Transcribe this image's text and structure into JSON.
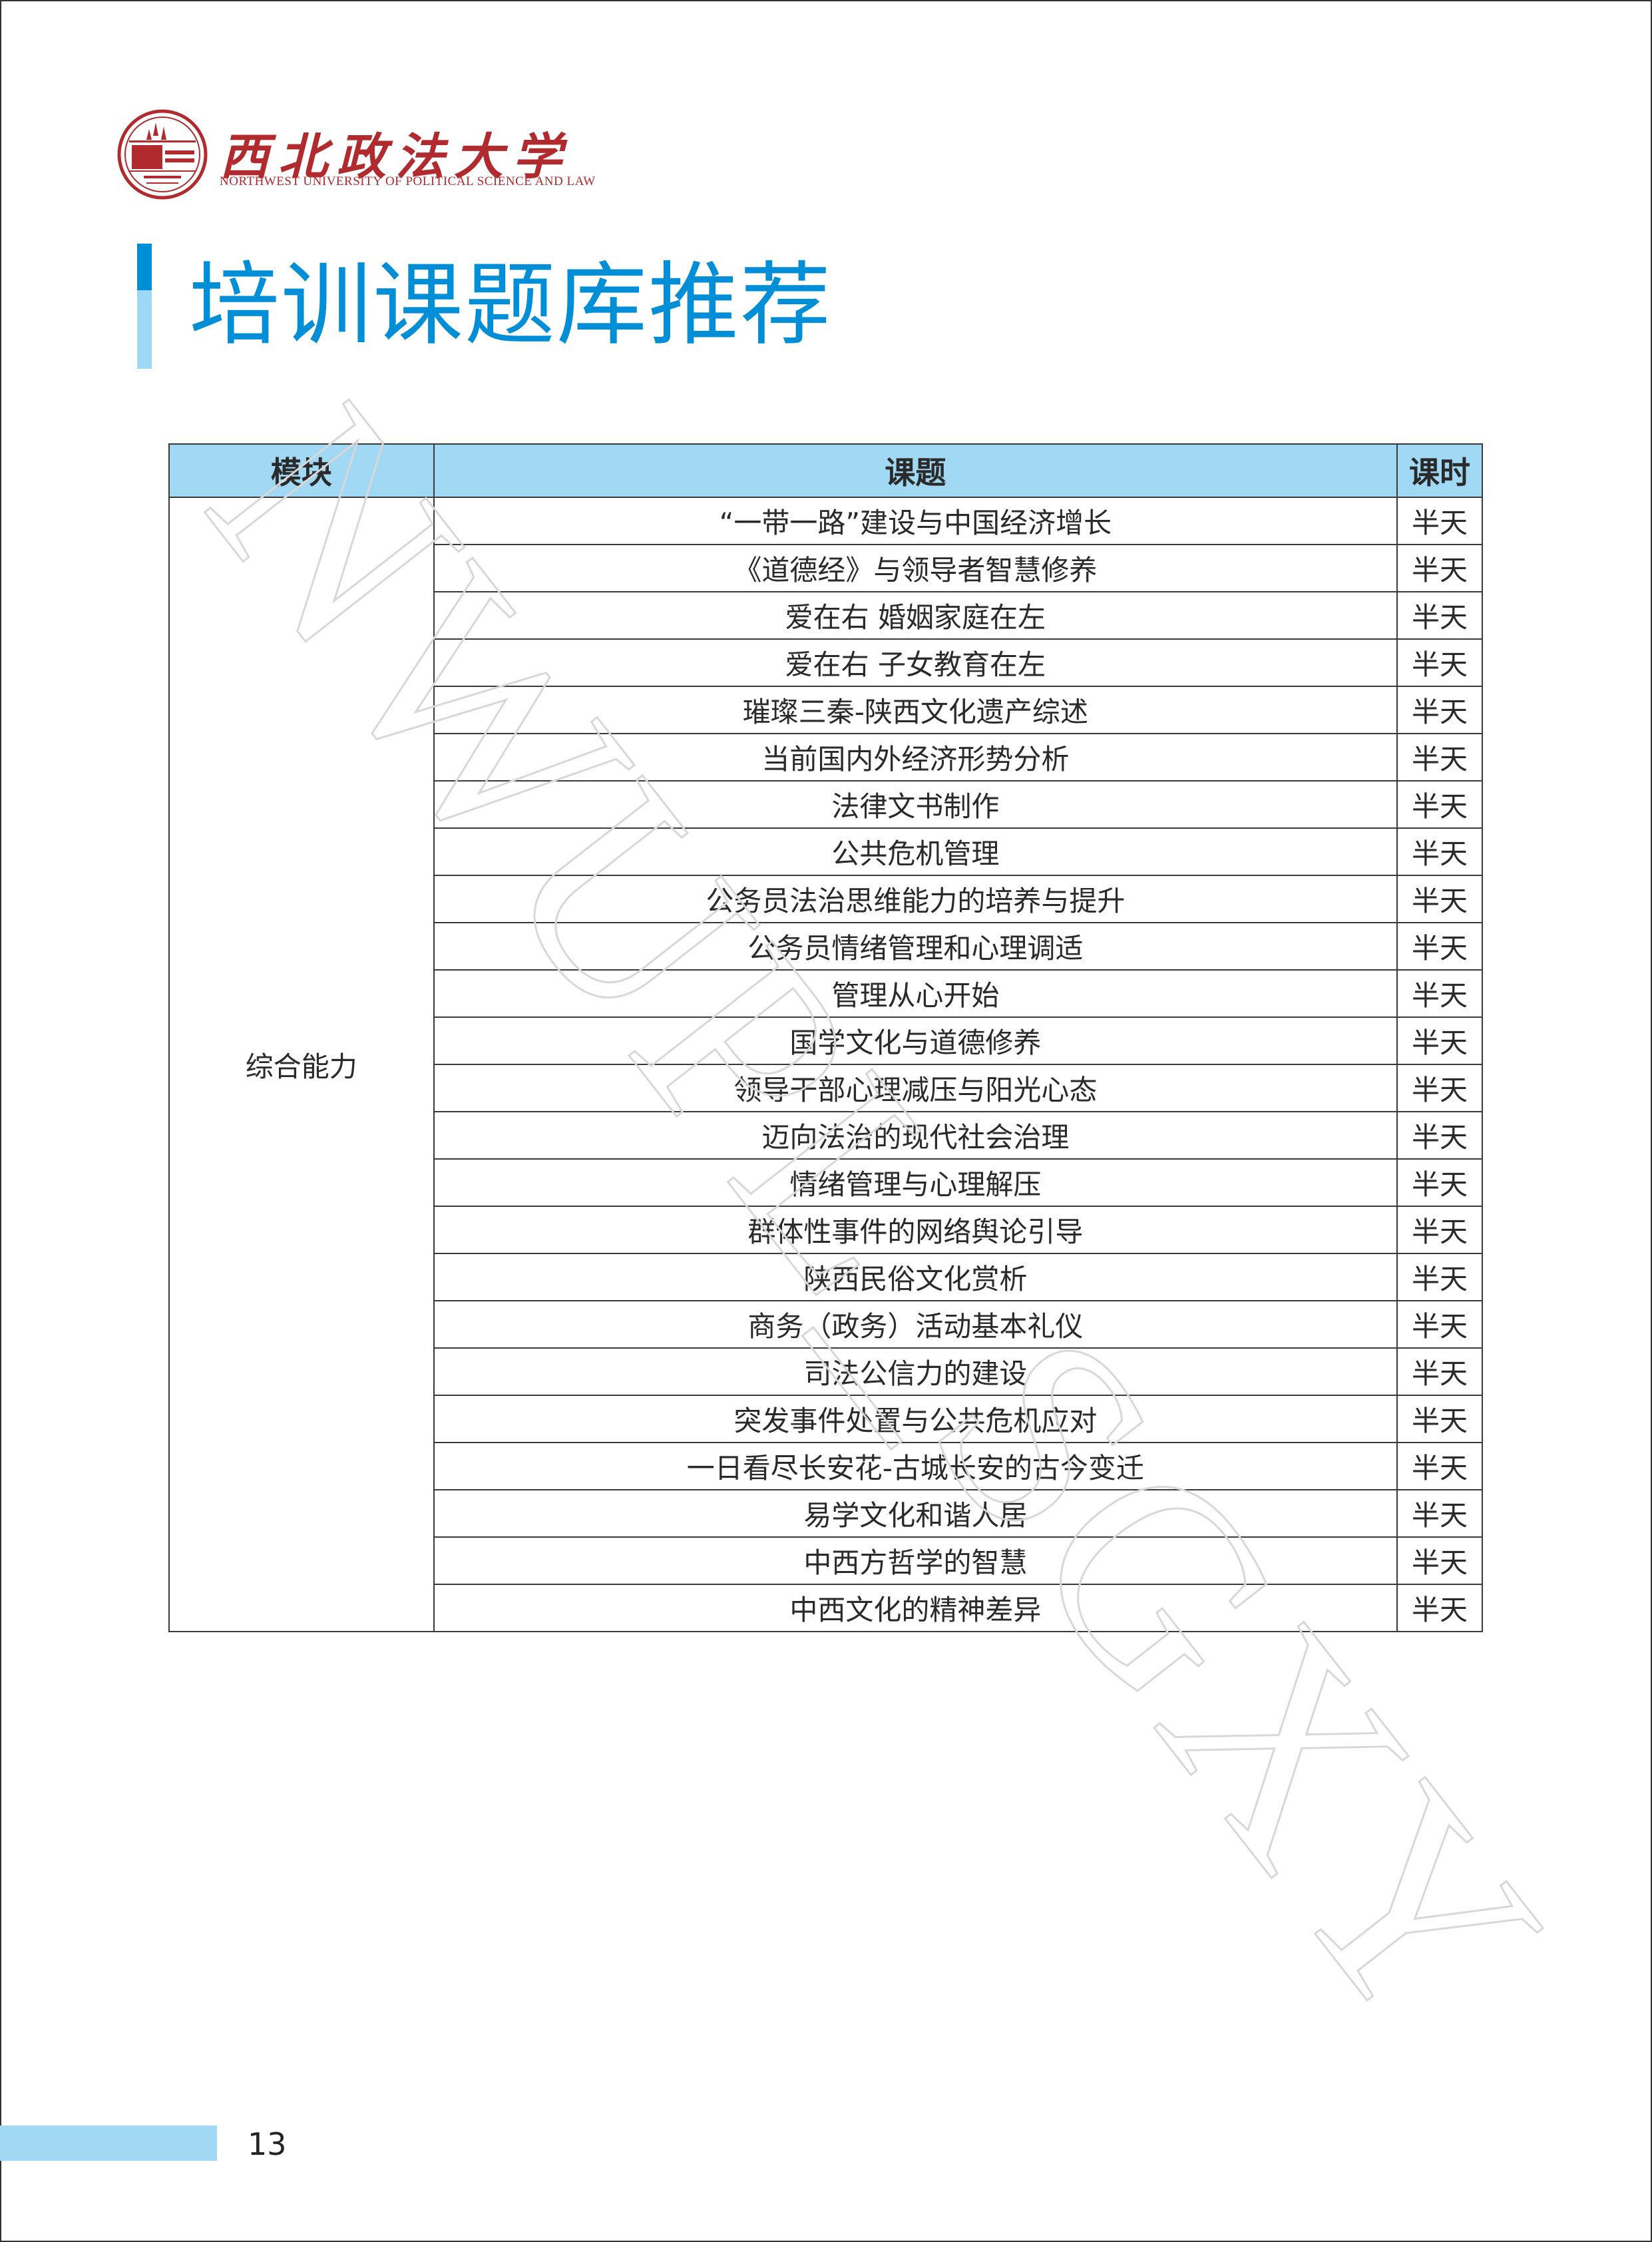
{
  "header": {
    "logo_cn": "西北政法大学",
    "logo_en": "NORTHWEST UNIVERSITY OF POLITICAL SCIENCE AND LAW",
    "logo_color": "#b02a2e"
  },
  "page_title": "培训课题库推荐",
  "accent_color": "#008fd7",
  "watermark": "NWUPL_SGXY",
  "table": {
    "headers": [
      "模块",
      "课题",
      "课时"
    ],
    "header_bg": "#a1d9f5",
    "module": "综合能力",
    "rows": [
      {
        "topic": "“一带一路”建设与中国经济增长",
        "duration": "半天"
      },
      {
        "topic": "《道德经》与领导者智慧修养",
        "duration": "半天"
      },
      {
        "topic": "爱在右 婚姻家庭在左",
        "duration": "半天"
      },
      {
        "topic": "爱在右 子女教育在左",
        "duration": "半天"
      },
      {
        "topic": "璀璨三秦-陕西文化遗产综述",
        "duration": "半天"
      },
      {
        "topic": "当前国内外经济形势分析",
        "duration": "半天"
      },
      {
        "topic": "法律文书制作",
        "duration": "半天"
      },
      {
        "topic": "公共危机管理",
        "duration": "半天"
      },
      {
        "topic": "公务员法治思维能力的培养与提升",
        "duration": "半天"
      },
      {
        "topic": "公务员情绪管理和心理调适",
        "duration": "半天"
      },
      {
        "topic": "管理从心开始",
        "duration": "半天"
      },
      {
        "topic": "国学文化与道德修养",
        "duration": "半天"
      },
      {
        "topic": "领导干部心理减压与阳光心态",
        "duration": "半天"
      },
      {
        "topic": "迈向法治的现代社会治理",
        "duration": "半天"
      },
      {
        "topic": "情绪管理与心理解压",
        "duration": "半天"
      },
      {
        "topic": "群体性事件的网络舆论引导",
        "duration": "半天"
      },
      {
        "topic": "陕西民俗文化赏析",
        "duration": "半天"
      },
      {
        "topic": "商务（政务）活动基本礼仪",
        "duration": "半天"
      },
      {
        "topic": "司法公信力的建设",
        "duration": "半天"
      },
      {
        "topic": "突发事件处置与公共危机应对",
        "duration": "半天"
      },
      {
        "topic": "一日看尽长安花-古城长安的古今变迁",
        "duration": "半天"
      },
      {
        "topic": "易学文化和谐人居",
        "duration": "半天"
      },
      {
        "topic": "中西方哲学的智慧",
        "duration": "半天"
      },
      {
        "topic": "中西文化的精神差异",
        "duration": "半天"
      }
    ]
  },
  "footer": {
    "page_number": "13"
  }
}
